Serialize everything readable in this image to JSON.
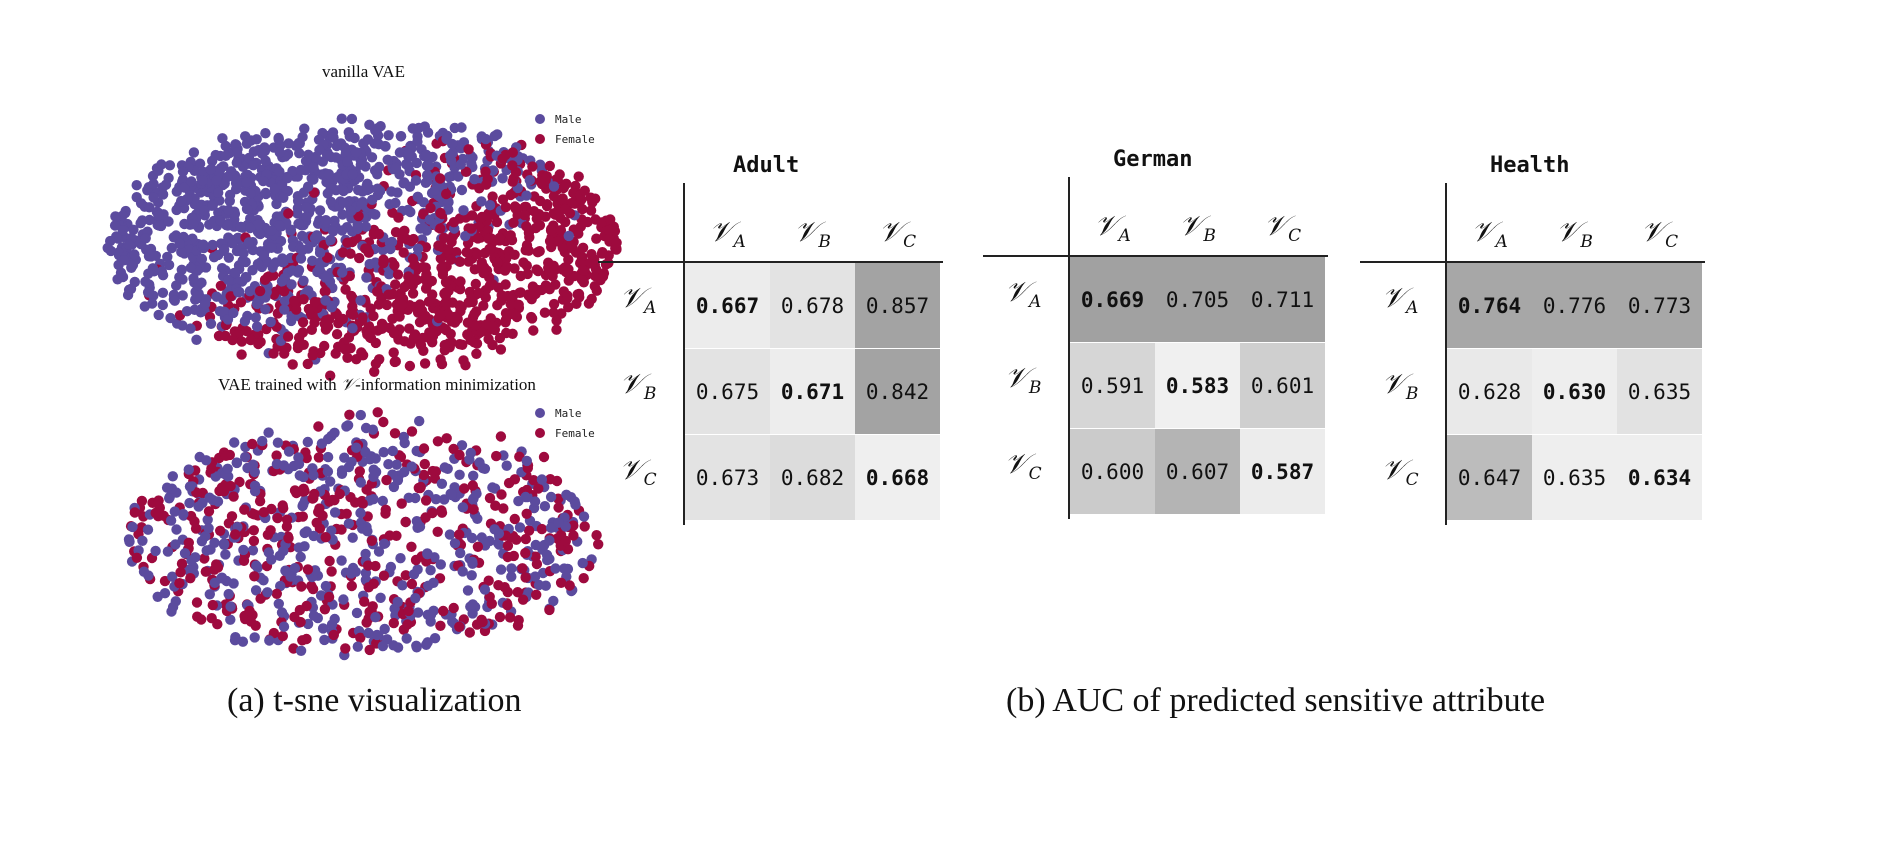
{
  "tsne": {
    "legend": {
      "male": "Male",
      "female": "Female",
      "male_color": "#5b4b9e",
      "female_color": "#9e0a3e"
    },
    "panels": [
      {
        "title_prefix": "vanilla VAE",
        "title_symbol": "",
        "title_suffix": ""
      },
      {
        "title_prefix": "VAE trained with ",
        "title_symbol": "𝒱",
        "title_suffix": "-information minimization"
      }
    ],
    "caption": "(a) t-sne visualization"
  },
  "auc": {
    "caption": "(b) AUC of predicted sensitive attribute",
    "symbol": "𝒱",
    "labels": [
      "A",
      "B",
      "C"
    ]
  },
  "chart_data": [
    {
      "type": "scatter",
      "title": "vanilla VAE",
      "series": [
        {
          "name": "Male"
        },
        {
          "name": "Female"
        }
      ],
      "legend": "top-right"
    },
    {
      "type": "scatter",
      "title": "VAE trained with 𝒱-information minimization",
      "series": [
        {
          "name": "Male"
        },
        {
          "name": "Female"
        }
      ],
      "legend": "top-right"
    },
    {
      "type": "heatmap",
      "title": "Adult",
      "rows": [
        "𝒱A",
        "𝒱B",
        "𝒱C"
      ],
      "columns": [
        "𝒱A",
        "𝒱B",
        "𝒱C"
      ],
      "values": [
        [
          "0.667",
          "0.678",
          "0.857"
        ],
        [
          "0.675",
          "0.671",
          "0.842"
        ],
        [
          "0.673",
          "0.682",
          "0.668"
        ]
      ],
      "shades": [
        [
          "#ececec",
          "#e3e3e3",
          "#a3a3a3"
        ],
        [
          "#e3e3e3",
          "#ededed",
          "#a3a3a3"
        ],
        [
          "#e3e3e3",
          "#dcdcdc",
          "#efefef"
        ]
      ],
      "bold_diagonal": true
    },
    {
      "type": "heatmap",
      "title": "German",
      "rows": [
        "𝒱A",
        "𝒱B",
        "𝒱C"
      ],
      "columns": [
        "𝒱A",
        "𝒱B",
        "𝒱C"
      ],
      "values": [
        [
          "0.669",
          "0.705",
          "0.711"
        ],
        [
          "0.591",
          "0.583",
          "0.601"
        ],
        [
          "0.600",
          "0.607",
          "0.587"
        ]
      ],
      "shades": [
        [
          "#a1a1a1",
          "#a1a1a1",
          "#a1a1a1"
        ],
        [
          "#d6d6d6",
          "#f0f0f0",
          "#cfcfcf"
        ],
        [
          "#cbcbcb",
          "#b4b4b4",
          "#ececec"
        ]
      ],
      "bold_diagonal": true
    },
    {
      "type": "heatmap",
      "title": "Health",
      "rows": [
        "𝒱A",
        "𝒱B",
        "𝒱C"
      ],
      "columns": [
        "𝒱A",
        "𝒱B",
        "𝒱C"
      ],
      "values": [
        [
          "0.764",
          "0.776",
          "0.773"
        ],
        [
          "0.628",
          "0.630",
          "0.635"
        ],
        [
          "0.647",
          "0.635",
          "0.634"
        ]
      ],
      "shades": [
        [
          "#a7a7a7",
          "#a7a7a7",
          "#a7a7a7"
        ],
        [
          "#e9e9e9",
          "#eeeeee",
          "#e2e2e2"
        ],
        [
          "#bcbcbc",
          "#eeeeee",
          "#eeeeee"
        ]
      ],
      "bold_diagonal": true
    }
  ]
}
